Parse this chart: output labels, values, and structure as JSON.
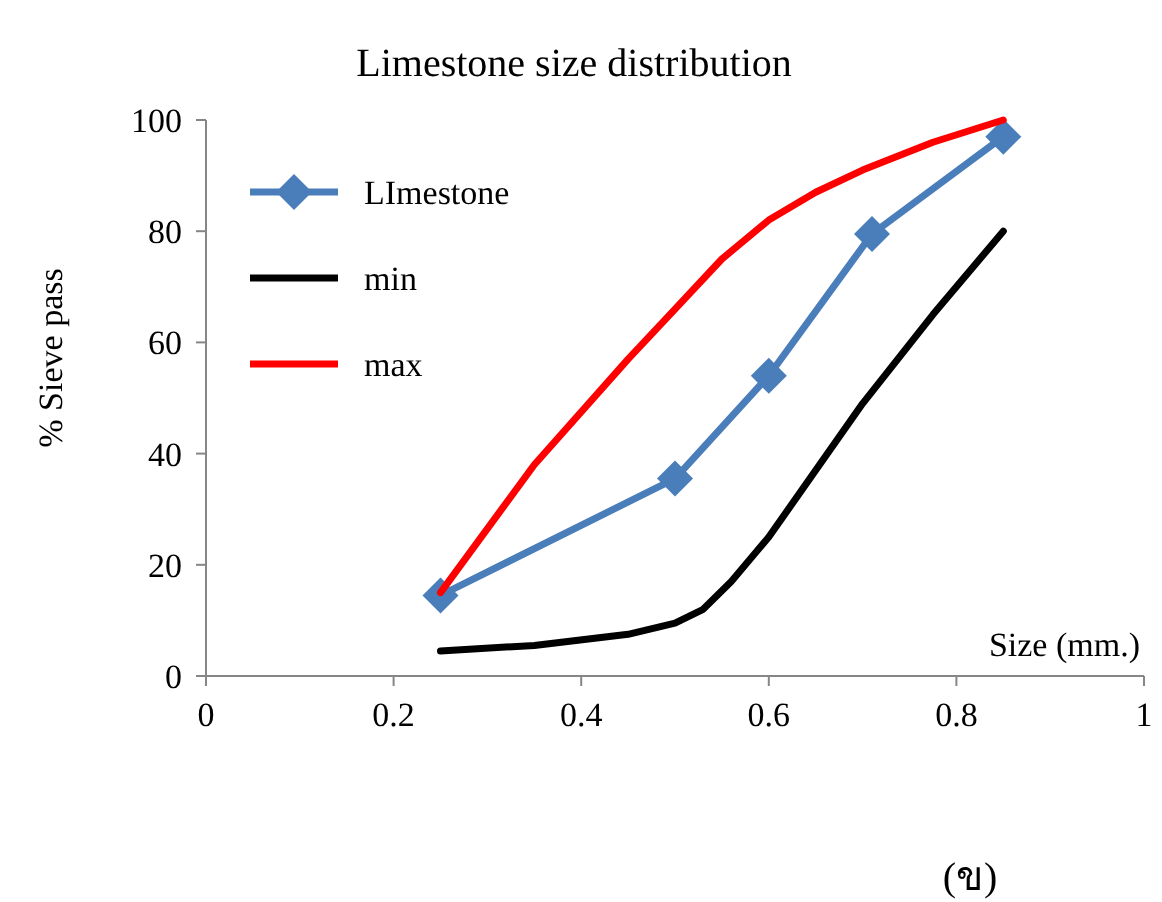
{
  "chart_data": {
    "type": "line",
    "title": "Limestone size distribution",
    "xlabel": "Size (mm.)",
    "ylabel": "% Sieve pass",
    "xlim": [
      0,
      1
    ],
    "xticks": [
      0,
      0.2,
      0.4,
      0.6,
      0.8,
      1
    ],
    "ylim": [
      0,
      100
    ],
    "yticks": [
      0,
      20,
      40,
      60,
      80,
      100
    ],
    "grid": false,
    "legend": "top left",
    "series": [
      {
        "name": "LImestone",
        "color": "#4a7ebb",
        "marker": "diamond",
        "x": [
          0.25,
          0.5,
          0.6,
          0.71,
          0.85
        ],
        "values": [
          14.5,
          35.5,
          54,
          79.5,
          97
        ]
      },
      {
        "name": "min",
        "color": "#000000",
        "marker": "none",
        "x": [
          0.25,
          0.35,
          0.45,
          0.5,
          0.53,
          0.56,
          0.6,
          0.65,
          0.7,
          0.775,
          0.85
        ],
        "values": [
          4.5,
          5.5,
          7.5,
          9.5,
          12,
          17,
          25,
          37,
          49,
          65,
          80
        ]
      },
      {
        "name": "max",
        "color": "#ff0000",
        "marker": "none",
        "x": [
          0.25,
          0.35,
          0.45,
          0.5,
          0.55,
          0.6,
          0.65,
          0.7,
          0.775,
          0.85
        ],
        "values": [
          15,
          38,
          57,
          66,
          75,
          82,
          87,
          91,
          96,
          100
        ]
      }
    ],
    "annotations": [
      "(ข)"
    ]
  }
}
